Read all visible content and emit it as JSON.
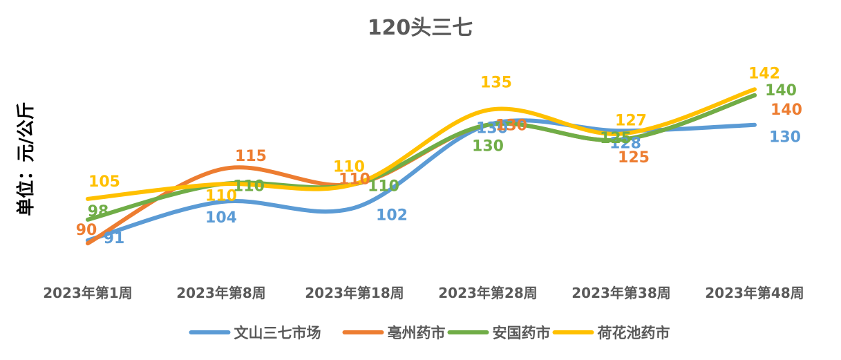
{
  "chart_data": {
    "type": "line",
    "title": "120头三七",
    "xlabel": "",
    "ylabel": "单位：元/公斤",
    "categories": [
      "2023年第1周",
      "2023年第8周",
      "2023年第18周",
      "2023年第28周",
      "2023年第38周",
      "2023年第48周"
    ],
    "ylim": [
      80,
      150
    ],
    "grid": false,
    "smooth": true,
    "legend_position": "bottom",
    "series": [
      {
        "name": "文山三七市场",
        "color": "#5B9BD5",
        "values": [
          91,
          104,
          102,
          130,
          128,
          130
        ]
      },
      {
        "name": "亳州药市",
        "color": "#ED7D31",
        "values": [
          90,
          115,
          110,
          130,
          125,
          140
        ]
      },
      {
        "name": "安国药市",
        "color": "#70AD47",
        "values": [
          98,
          110,
          110,
          130,
          125,
          140
        ]
      },
      {
        "name": "荷花池药市",
        "color": "#FFC000",
        "values": [
          105,
          110,
          110,
          135,
          127,
          142
        ]
      }
    ]
  }
}
